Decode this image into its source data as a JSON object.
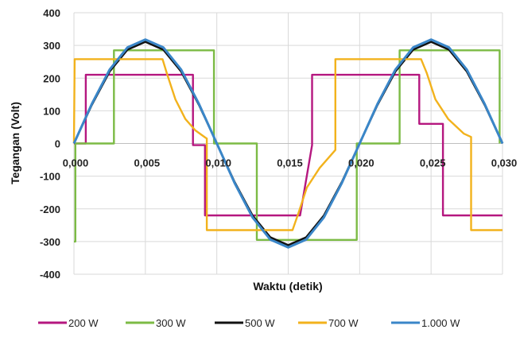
{
  "chart_data": {
    "type": "line",
    "xlabel": "Waktu (detik)",
    "ylabel": "Tegangan (Volt)",
    "xlim": [
      0,
      0.03
    ],
    "ylim": [
      -400,
      400
    ],
    "x_ticks": [
      0,
      0.005,
      0.01,
      0.015,
      0.02,
      0.025,
      0.03
    ],
    "x_tick_labels": [
      "0,000",
      "0,005",
      "0,010",
      "0,015",
      "0,020",
      "0,025",
      "0,030"
    ],
    "y_ticks": [
      -400,
      -300,
      -200,
      -100,
      0,
      100,
      200,
      300,
      400
    ],
    "y_tick_labels": [
      "-400",
      "-300",
      "-200",
      "-100",
      "0",
      "100",
      "200",
      "300",
      "400"
    ],
    "grid": true,
    "legend_position": "bottom",
    "series": [
      {
        "name": "200 W",
        "color": "#b5177f",
        "x": [
          0,
          0.00083,
          0.00083,
          0.00833,
          0.00833,
          0.00917,
          0.00917,
          0.01583,
          0.01583,
          0.01667,
          0.01667,
          0.02417,
          0.02417,
          0.02583,
          0.02583,
          0.03
        ],
        "y": [
          0,
          0,
          210,
          210,
          -5,
          -5,
          -220,
          -220,
          -220,
          -5,
          210,
          210,
          60,
          60,
          -220,
          -220
        ]
      },
      {
        "name": "300 W",
        "color": "#7cbb45",
        "x": [
          0,
          0.0001,
          0.0001,
          0.0028,
          0.0028,
          0.0098,
          0.0098,
          0.0128,
          0.0128,
          0.0198,
          0.0198,
          0.0228,
          0.0228,
          0.0298,
          0.0298
        ],
        "y": [
          -300,
          -300,
          0,
          0,
          285,
          285,
          0,
          0,
          -295,
          -295,
          0,
          0,
          285,
          285,
          0
        ]
      },
      {
        "name": "500 W",
        "color": "#111111",
        "x": [
          0,
          0.00125,
          0.0025,
          0.00375,
          0.005,
          0.00625,
          0.0075,
          0.00875,
          0.01,
          0.01125,
          0.0125,
          0.01375,
          0.015,
          0.01625,
          0.0175,
          0.01875,
          0.02,
          0.02125,
          0.0225,
          0.02375,
          0.025,
          0.02625,
          0.0275,
          0.02875,
          0.03
        ],
        "y": [
          0,
          118,
          220,
          287,
          311,
          287,
          220,
          118,
          0,
          -118,
          -220,
          -287,
          -311,
          -287,
          -220,
          -118,
          0,
          118,
          220,
          287,
          311,
          287,
          220,
          118,
          0
        ]
      },
      {
        "name": "700 W",
        "color": "#f2b21c",
        "x": [
          0,
          5e-05,
          0.0062,
          0.0065,
          0.0071,
          0.0078,
          0.0085,
          0.0092,
          0.0093,
          0.0093,
          0.0153,
          0.0157,
          0.0163,
          0.0172,
          0.0183,
          0.0183,
          0.0243,
          0.0247,
          0.0253,
          0.0262,
          0.0273,
          0.0278,
          0.0278,
          0.03
        ],
        "y": [
          0,
          258,
          258,
          215,
          135,
          75,
          40,
          18,
          15,
          -265,
          -265,
          -215,
          -135,
          -75,
          -20,
          258,
          258,
          215,
          135,
          75,
          30,
          20,
          -265,
          -265
        ]
      },
      {
        "name": "1.000 W",
        "color": "#3a86c8",
        "x": [
          0,
          0.00125,
          0.0025,
          0.00375,
          0.005,
          0.00625,
          0.0075,
          0.00875,
          0.01,
          0.01125,
          0.0125,
          0.01375,
          0.015,
          0.01625,
          0.0175,
          0.01875,
          0.02,
          0.02125,
          0.0225,
          0.02375,
          0.025,
          0.02625,
          0.0275,
          0.02875,
          0.03
        ],
        "y": [
          0,
          121,
          226,
          294,
          318,
          294,
          226,
          121,
          0,
          -121,
          -226,
          -294,
          -318,
          -294,
          -226,
          -121,
          0,
          121,
          226,
          294,
          318,
          294,
          226,
          121,
          0
        ]
      }
    ]
  }
}
